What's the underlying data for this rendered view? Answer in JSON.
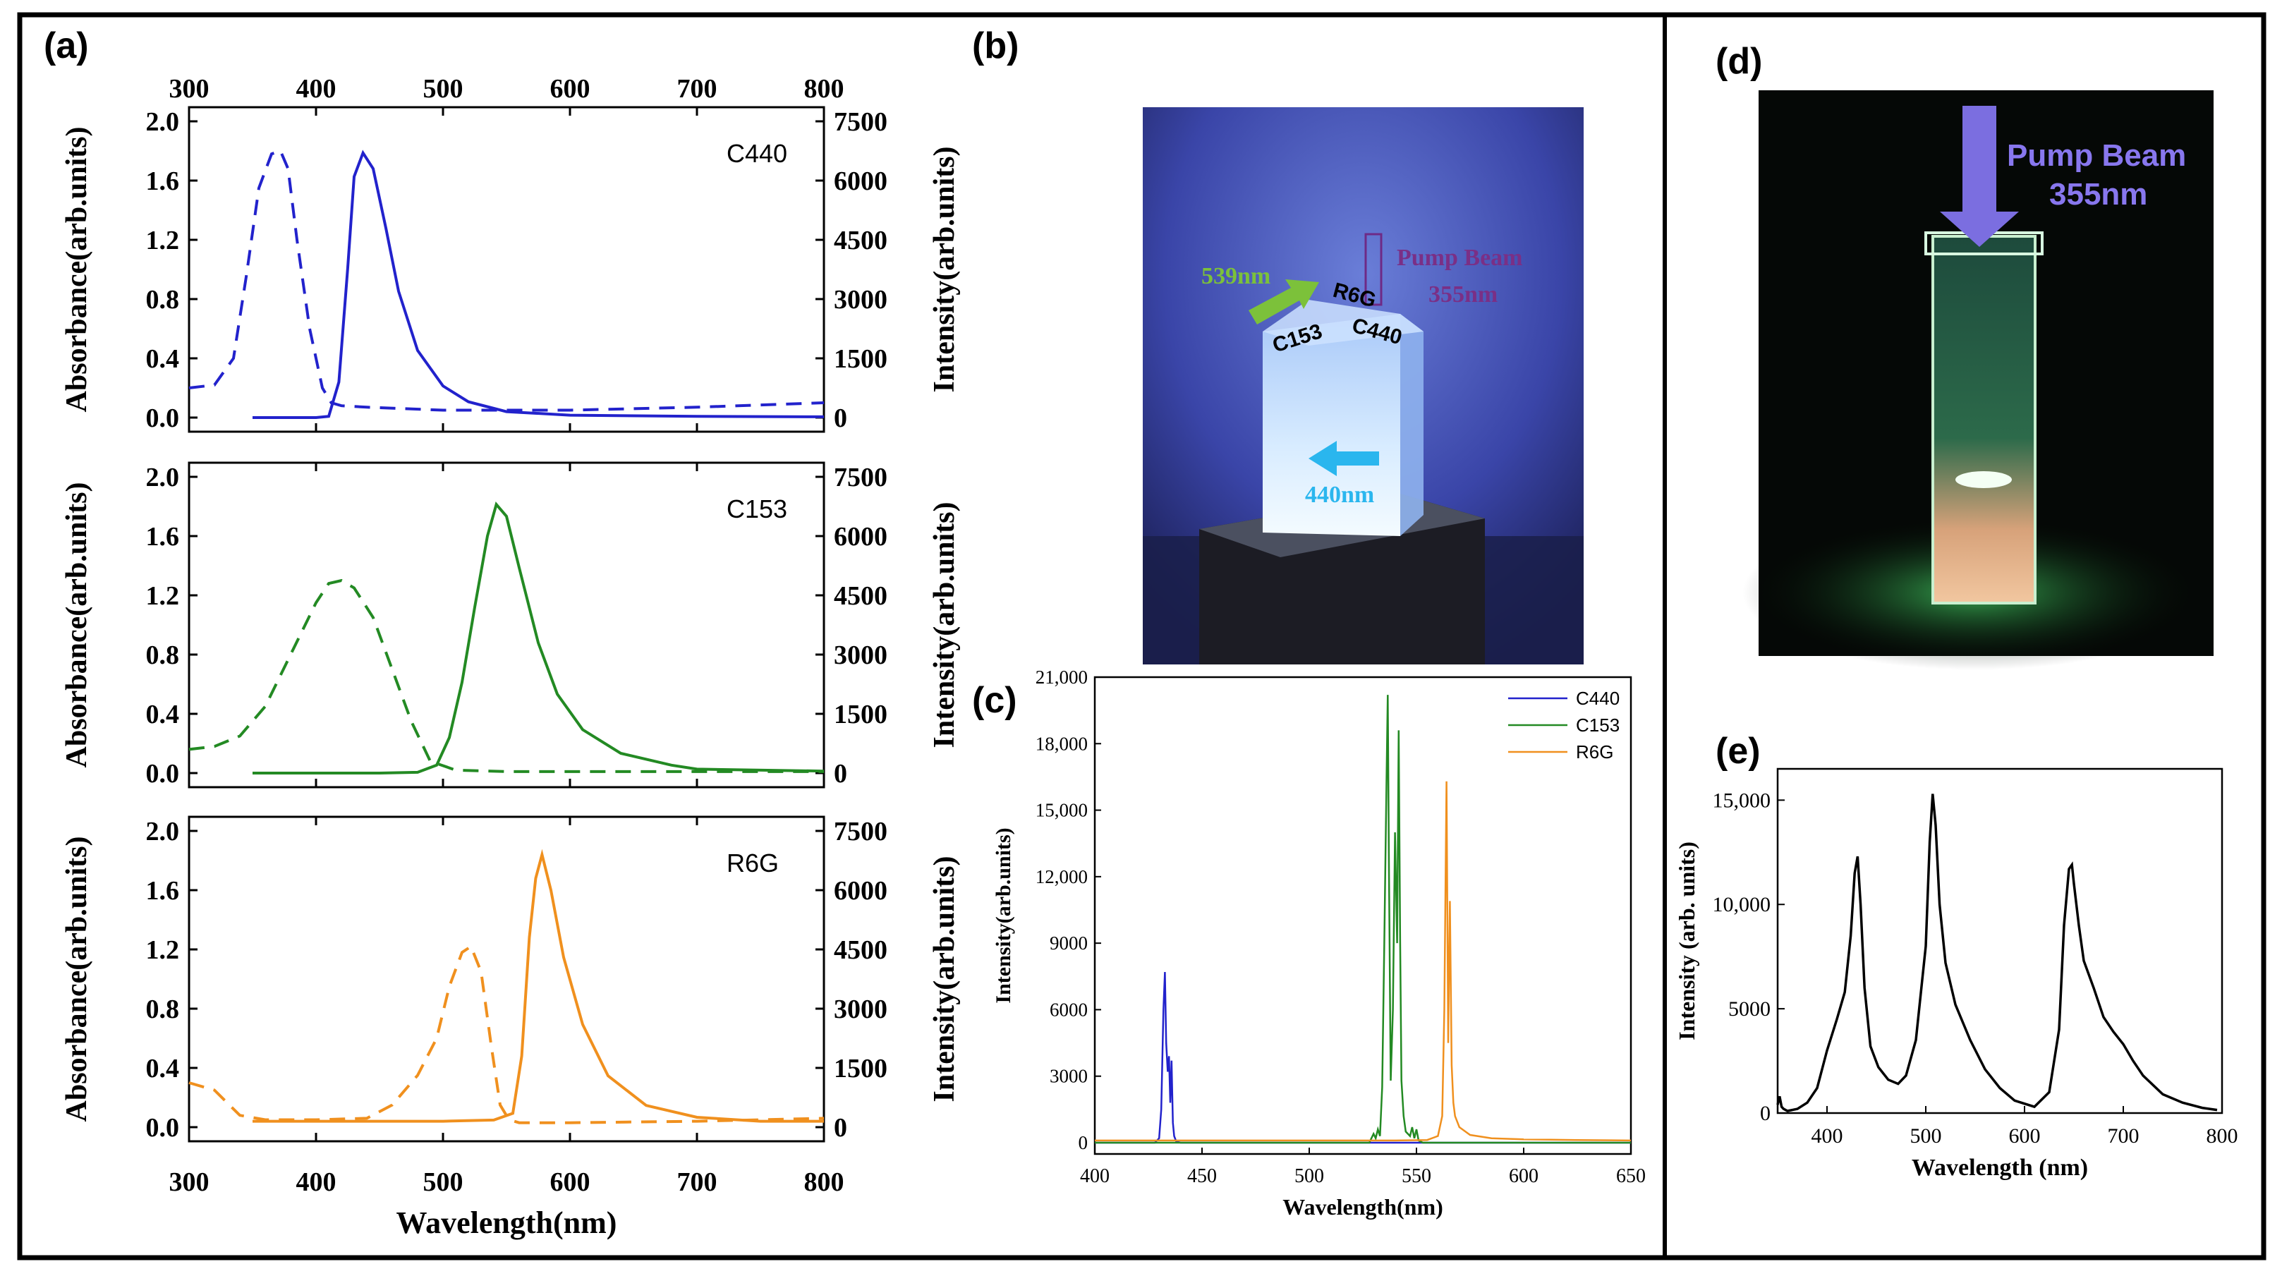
{
  "panel_labels": {
    "a": "(a)",
    "b": "(b)",
    "c": "(c)",
    "d": "(d)",
    "e": "(e)"
  },
  "colors": {
    "c440": "#2222cc",
    "c153": "#238a23",
    "r6g": "#f0901e",
    "black": "#000000"
  },
  "photo_b": {
    "labels": {
      "green_beam": "539nm",
      "pump": "Pump Beam",
      "pump_nm": "355nm",
      "r6g": "R6G",
      "c153": "C153",
      "c440": "C440",
      "blue_beam": "440nm"
    }
  },
  "photo_d": {
    "labels": {
      "pump": "Pump Beam",
      "pump_nm": "355nm"
    }
  },
  "chart_data": [
    {
      "id": "a",
      "type": "line",
      "xlabel": "Wavelength(nm)",
      "ylabel_left": "Absorbance(arb.units)",
      "ylabel_right": "Intensity(arb.units)",
      "xlim": [
        300,
        800
      ],
      "xticks": [
        "300",
        "400",
        "500",
        "600",
        "700",
        "800"
      ],
      "ylim_left": [
        0,
        2.0
      ],
      "yticks_left": [
        "0.0",
        "0.4",
        "0.8",
        "1.2",
        "1.6",
        "2.0"
      ],
      "ylim_right": [
        0,
        7500
      ],
      "yticks_right": [
        "0",
        "1500",
        "3000",
        "4500",
        "6000",
        "7500"
      ],
      "subplots": [
        {
          "label": "C440",
          "color": "#2222cc",
          "absorbance_dashed": {
            "x": [
              300,
              320,
              335,
              345,
              355,
              365,
              372,
              378,
              385,
              395,
              405,
              412,
              420,
              440,
              500,
              600,
              700,
              800
            ],
            "y": [
              0.2,
              0.22,
              0.4,
              0.95,
              1.55,
              1.78,
              1.8,
              1.68,
              1.2,
              0.6,
              0.2,
              0.1,
              0.08,
              0.07,
              0.05,
              0.05,
              0.07,
              0.1
            ]
          },
          "emission_solid": {
            "x": [
              350,
              380,
              400,
              410,
              418,
              425,
              430,
              437,
              445,
              455,
              465,
              480,
              500,
              520,
              550,
              600,
              700,
              800
            ],
            "y": [
              0,
              0,
              0,
              30,
              900,
              3800,
              6100,
              6700,
              6300,
              4800,
              3200,
              1700,
              800,
              400,
              150,
              60,
              30,
              20
            ]
          }
        },
        {
          "label": "C153",
          "color": "#238a23",
          "absorbance_dashed": {
            "x": [
              300,
              320,
              340,
              360,
              380,
              400,
              410,
              420,
              430,
              445,
              460,
              475,
              490,
              510,
              550,
              600,
              700,
              800
            ],
            "y": [
              0.16,
              0.18,
              0.25,
              0.45,
              0.8,
              1.15,
              1.28,
              1.3,
              1.25,
              1.05,
              0.7,
              0.35,
              0.08,
              0.02,
              0.01,
              0.01,
              0.01,
              0.01
            ]
          },
          "emission_solid": {
            "x": [
              350,
              400,
              450,
              480,
              495,
              505,
              515,
              525,
              535,
              542,
              550,
              560,
              575,
              590,
              610,
              640,
              680,
              700,
              800
            ],
            "y": [
              0,
              0,
              0,
              20,
              200,
              900,
              2300,
              4200,
              6000,
              6800,
              6500,
              5200,
              3300,
              2000,
              1100,
              500,
              200,
              100,
              50
            ]
          }
        },
        {
          "label": "R6G",
          "color": "#f0901e",
          "absorbance_dashed": {
            "x": [
              300,
              320,
              340,
              360,
              400,
              440,
              460,
              480,
              495,
              505,
              515,
              522,
              530,
              538,
              545,
              552,
              560,
              600,
              700,
              800
            ],
            "y": [
              0.3,
              0.25,
              0.08,
              0.05,
              0.05,
              0.06,
              0.15,
              0.35,
              0.6,
              0.95,
              1.18,
              1.22,
              1.05,
              0.55,
              0.15,
              0.05,
              0.03,
              0.03,
              0.04,
              0.06
            ]
          },
          "emission_solid": {
            "x": [
              350,
              400,
              450,
              500,
              540,
              555,
              562,
              568,
              573,
              578,
              585,
              595,
              610,
              630,
              660,
              700,
              750,
              800
            ],
            "y": [
              150,
              150,
              150,
              150,
              180,
              350,
              1800,
              4800,
              6300,
              6900,
              6000,
              4300,
              2600,
              1300,
              550,
              250,
              150,
              150
            ]
          }
        }
      ]
    },
    {
      "id": "c",
      "type": "line",
      "xlabel": "Wavelength(nm)",
      "ylabel": "Intensity(arb.units)",
      "xlim": [
        400,
        650
      ],
      "xticks": [
        "400",
        "450",
        "500",
        "550",
        "600",
        "650"
      ],
      "ylim": [
        0,
        21000
      ],
      "yticks": [
        "0",
        "3000",
        "6000",
        "9000",
        "12,000",
        "15,000",
        "18,000",
        "21,000"
      ],
      "legend_position": "top-right",
      "series": [
        {
          "name": "C440",
          "color": "#2222cc",
          "x": [
            400,
            428,
            430,
            431,
            432,
            432.7,
            433.3,
            434,
            434.6,
            435.2,
            435.8,
            436.4,
            437,
            438,
            440,
            650
          ],
          "y": [
            0,
            0,
            200,
            1500,
            6000,
            7700,
            4500,
            3200,
            3900,
            1800,
            3700,
            900,
            300,
            50,
            0,
            0
          ]
        },
        {
          "name": "C153",
          "color": "#238a23",
          "x": [
            400,
            528,
            530,
            531,
            532,
            533,
            534,
            535,
            536,
            536.6,
            537.2,
            538,
            539,
            540,
            541,
            541.7,
            542.4,
            543,
            544,
            545,
            547,
            548,
            549,
            550,
            551,
            553,
            650
          ],
          "y": [
            0,
            0,
            400,
            200,
            600,
            300,
            2500,
            9000,
            16000,
            20200,
            12000,
            2800,
            6000,
            14000,
            9000,
            18600,
            9000,
            2800,
            1200,
            500,
            300,
            700,
            200,
            600,
            100,
            0,
            0
          ]
        },
        {
          "name": "R6G",
          "color": "#f0901e",
          "x": [
            400,
            540,
            555,
            560,
            562,
            563,
            564,
            564.8,
            565.6,
            566.4,
            567.2,
            568,
            570,
            575,
            585,
            600,
            625,
            650
          ],
          "y": [
            100,
            100,
            120,
            300,
            1200,
            6000,
            16300,
            4500,
            10900,
            3500,
            1800,
            1200,
            700,
            350,
            200,
            150,
            120,
            100
          ]
        }
      ]
    },
    {
      "id": "e",
      "type": "line",
      "xlabel": "Wavelength (nm)",
      "ylabel": "Intensity (arb. units)",
      "xlim": [
        350,
        800
      ],
      "xticks": [
        "400",
        "500",
        "600",
        "700",
        "800"
      ],
      "ylim": [
        0,
        16500
      ],
      "yticks": [
        "0",
        "5000",
        "10,000",
        "15,000"
      ],
      "series": [
        {
          "color": "#000000",
          "x": [
            350,
            352,
            354,
            356,
            360,
            370,
            380,
            390,
            400,
            410,
            418,
            424,
            428,
            431,
            434,
            438,
            444,
            452,
            462,
            472,
            480,
            490,
            500,
            504,
            507,
            510,
            514,
            520,
            530,
            545,
            560,
            575,
            590,
            610,
            625,
            635,
            640,
            645,
            648,
            650,
            655,
            660,
            670,
            680,
            690,
            700,
            710,
            720,
            740,
            760,
            780,
            795
          ],
          "y": [
            400,
            800,
            300,
            200,
            100,
            200,
            500,
            1200,
            3000,
            4500,
            5800,
            8500,
            11500,
            12300,
            10000,
            6000,
            3200,
            2200,
            1600,
            1400,
            1800,
            3500,
            8000,
            13000,
            15300,
            13800,
            10000,
            7200,
            5200,
            3500,
            2100,
            1200,
            600,
            300,
            1000,
            4000,
            9000,
            11700,
            11900,
            11000,
            9000,
            7300,
            6000,
            4600,
            3900,
            3300,
            2500,
            1800,
            900,
            500,
            250,
            150
          ]
        }
      ]
    }
  ]
}
